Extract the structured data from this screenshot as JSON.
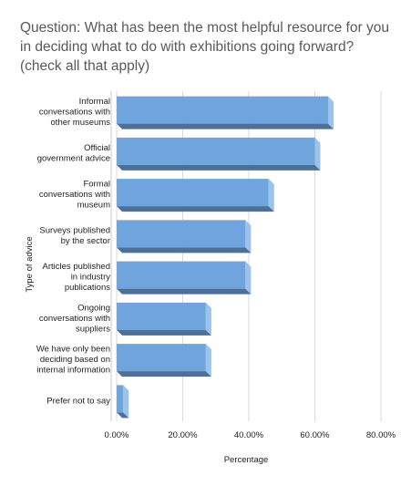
{
  "chart_data": {
    "type": "bar",
    "orientation": "horizontal",
    "style": "3d",
    "title": "Question: What has been the most helpful resource for you in deciding what to do with exhibitions going forward? (check all that apply)",
    "xlabel": "Percentage",
    "ylabel": "Type of advice",
    "xlim": [
      0,
      80
    ],
    "x_ticks": [
      "0.00%",
      "20.00%",
      "40.00%",
      "60.00%",
      "80.00%"
    ],
    "grid": true,
    "categories": [
      [
        "Informal",
        "conversations with",
        "other museums"
      ],
      [
        "Official",
        "government advice"
      ],
      [
        "Formal",
        "conversations with",
        "museum"
      ],
      [
        "Surveys published",
        "by the sector"
      ],
      [
        "Articles published",
        "in industry",
        "publications"
      ],
      [
        "Ongoing",
        "conversations with",
        "suppliers"
      ],
      [
        "We have only been",
        "deciding based on",
        "internal information"
      ],
      [
        "Prefer not to say"
      ]
    ],
    "values": [
      64,
      60,
      46,
      39,
      39,
      27,
      27,
      2
    ],
    "colors": {
      "bar_front": "#6fa5dc",
      "bar_top": "#4f6f96",
      "bar_side": "#9cc3ea",
      "grid": "#d9d9d9"
    }
  }
}
